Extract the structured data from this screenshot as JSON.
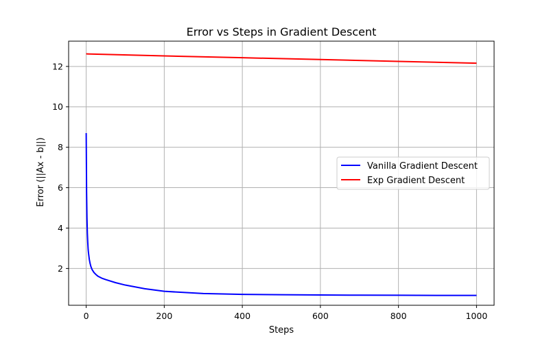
{
  "chart_data": {
    "type": "line",
    "title": "Error vs Steps in Gradient Descent",
    "xlabel": "Steps",
    "ylabel": "Error (||Ax - b||)",
    "xlim": [
      -45,
      1045
    ],
    "ylim": [
      0.18,
      13.25
    ],
    "xticks": [
      0,
      200,
      400,
      600,
      800,
      1000
    ],
    "yticks": [
      2,
      4,
      6,
      8,
      10,
      12
    ],
    "grid": true,
    "legend_position": "center-right",
    "series": [
      {
        "name": "Vanilla Gradient Descent",
        "color": "#0000ff",
        "x": [
          0,
          1,
          2,
          3,
          4,
          5,
          6,
          8,
          10,
          12,
          15,
          20,
          25,
          30,
          40,
          50,
          75,
          100,
          150,
          200,
          300,
          400,
          500,
          600,
          700,
          800,
          900,
          1000
        ],
        "y": [
          8.7,
          5.8,
          4.5,
          3.75,
          3.3,
          2.95,
          2.75,
          2.45,
          2.25,
          2.1,
          1.95,
          1.8,
          1.7,
          1.62,
          1.52,
          1.45,
          1.3,
          1.18,
          1.0,
          0.87,
          0.76,
          0.72,
          0.7,
          0.69,
          0.68,
          0.675,
          0.67,
          0.67
        ]
      },
      {
        "name": "Exp Gradient Descent",
        "color": "#ff0000",
        "x": [
          0,
          200,
          400,
          600,
          800,
          1000
        ],
        "y": [
          12.62,
          12.52,
          12.43,
          12.34,
          12.25,
          12.16
        ]
      }
    ]
  }
}
